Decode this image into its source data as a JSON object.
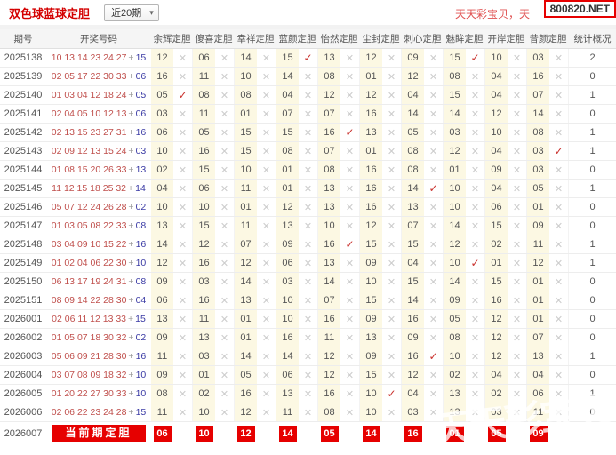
{
  "topbar": {
    "title": "双色球蓝球定胆",
    "range_selector": {
      "value": "近20期"
    },
    "promo_text": "天天彩宝贝，天",
    "site_badge": "800820.NET"
  },
  "icons": {
    "check": "✓",
    "cross": "✕",
    "dropdown_arrow": "▾"
  },
  "colors": {
    "accent_red": "#e60000",
    "title_red": "#d40000",
    "red_ball": "#c0504d",
    "blue_ball": "#3b3ba5",
    "hit_check": "#c9302c",
    "miss_cross": "#cccccc",
    "value_cell_bg": "#fcf8e3"
  },
  "watermark": "天天彩宝贝",
  "table": {
    "columns": [
      "期号",
      "开奖号码",
      "余辉定胆",
      "傻喜定胆",
      "幸祥定胆",
      "蓝颜定胆",
      "怡然定胆",
      "尘封定胆",
      "刺心定胆",
      "魅眸定胆",
      "开岸定胆",
      "昔颜定胆",
      "统计概况"
    ],
    "rows": [
      {
        "period": "2025138",
        "reds": "10 13 14 23 24 27",
        "blue": "15",
        "stat": "2",
        "picks": [
          {
            "v": "12",
            "h": 0
          },
          {
            "v": "06",
            "h": 0
          },
          {
            "v": "14",
            "h": 0
          },
          {
            "v": "15",
            "h": 1
          },
          {
            "v": "13",
            "h": 0
          },
          {
            "v": "12",
            "h": 0
          },
          {
            "v": "09",
            "h": 0
          },
          {
            "v": "15",
            "h": 1
          },
          {
            "v": "10",
            "h": 0
          },
          {
            "v": "03",
            "h": 0
          }
        ]
      },
      {
        "period": "2025139",
        "reds": "02 05 17 22 30 33",
        "blue": "06",
        "stat": "0",
        "picks": [
          {
            "v": "16",
            "h": 0
          },
          {
            "v": "11",
            "h": 0
          },
          {
            "v": "10",
            "h": 0
          },
          {
            "v": "14",
            "h": 0
          },
          {
            "v": "08",
            "h": 0
          },
          {
            "v": "01",
            "h": 0
          },
          {
            "v": "12",
            "h": 0
          },
          {
            "v": "08",
            "h": 0
          },
          {
            "v": "04",
            "h": 0
          },
          {
            "v": "16",
            "h": 0
          }
        ]
      },
      {
        "period": "2025140",
        "reds": "01 03 04 12 18 24",
        "blue": "05",
        "stat": "1",
        "picks": [
          {
            "v": "05",
            "h": 1
          },
          {
            "v": "08",
            "h": 0
          },
          {
            "v": "08",
            "h": 0
          },
          {
            "v": "04",
            "h": 0
          },
          {
            "v": "12",
            "h": 0
          },
          {
            "v": "12",
            "h": 0
          },
          {
            "v": "04",
            "h": 0
          },
          {
            "v": "15",
            "h": 0
          },
          {
            "v": "04",
            "h": 0
          },
          {
            "v": "07",
            "h": 0
          }
        ]
      },
      {
        "period": "2025141",
        "reds": "02 04 05 10 12 13",
        "blue": "06",
        "stat": "0",
        "picks": [
          {
            "v": "03",
            "h": 0
          },
          {
            "v": "11",
            "h": 0
          },
          {
            "v": "01",
            "h": 0
          },
          {
            "v": "07",
            "h": 0
          },
          {
            "v": "07",
            "h": 0
          },
          {
            "v": "16",
            "h": 0
          },
          {
            "v": "14",
            "h": 0
          },
          {
            "v": "14",
            "h": 0
          },
          {
            "v": "12",
            "h": 0
          },
          {
            "v": "14",
            "h": 0
          }
        ]
      },
      {
        "period": "2025142",
        "reds": "02 13 15 23 27 31",
        "blue": "16",
        "stat": "1",
        "picks": [
          {
            "v": "06",
            "h": 0
          },
          {
            "v": "05",
            "h": 0
          },
          {
            "v": "15",
            "h": 0
          },
          {
            "v": "15",
            "h": 0
          },
          {
            "v": "16",
            "h": 1
          },
          {
            "v": "13",
            "h": 0
          },
          {
            "v": "05",
            "h": 0
          },
          {
            "v": "03",
            "h": 0
          },
          {
            "v": "10",
            "h": 0
          },
          {
            "v": "08",
            "h": 0
          }
        ]
      },
      {
        "period": "2025143",
        "reds": "02 09 12 13 15 24",
        "blue": "03",
        "stat": "1",
        "picks": [
          {
            "v": "10",
            "h": 0
          },
          {
            "v": "16",
            "h": 0
          },
          {
            "v": "15",
            "h": 0
          },
          {
            "v": "08",
            "h": 0
          },
          {
            "v": "07",
            "h": 0
          },
          {
            "v": "01",
            "h": 0
          },
          {
            "v": "08",
            "h": 0
          },
          {
            "v": "12",
            "h": 0
          },
          {
            "v": "04",
            "h": 0
          },
          {
            "v": "03",
            "h": 1
          }
        ]
      },
      {
        "period": "2025144",
        "reds": "01 08 15 20 26 33",
        "blue": "13",
        "stat": "0",
        "picks": [
          {
            "v": "02",
            "h": 0
          },
          {
            "v": "15",
            "h": 0
          },
          {
            "v": "10",
            "h": 0
          },
          {
            "v": "01",
            "h": 0
          },
          {
            "v": "08",
            "h": 0
          },
          {
            "v": "16",
            "h": 0
          },
          {
            "v": "08",
            "h": 0
          },
          {
            "v": "01",
            "h": 0
          },
          {
            "v": "09",
            "h": 0
          },
          {
            "v": "03",
            "h": 0
          }
        ]
      },
      {
        "period": "2025145",
        "reds": "11 12 15 18 25 32",
        "blue": "14",
        "stat": "1",
        "picks": [
          {
            "v": "04",
            "h": 0
          },
          {
            "v": "06",
            "h": 0
          },
          {
            "v": "11",
            "h": 0
          },
          {
            "v": "01",
            "h": 0
          },
          {
            "v": "13",
            "h": 0
          },
          {
            "v": "16",
            "h": 0
          },
          {
            "v": "14",
            "h": 1
          },
          {
            "v": "10",
            "h": 0
          },
          {
            "v": "04",
            "h": 0
          },
          {
            "v": "05",
            "h": 0
          }
        ]
      },
      {
        "period": "2025146",
        "reds": "05 07 12 24 26 28",
        "blue": "02",
        "stat": "0",
        "picks": [
          {
            "v": "10",
            "h": 0
          },
          {
            "v": "10",
            "h": 0
          },
          {
            "v": "01",
            "h": 0
          },
          {
            "v": "12",
            "h": 0
          },
          {
            "v": "13",
            "h": 0
          },
          {
            "v": "16",
            "h": 0
          },
          {
            "v": "13",
            "h": 0
          },
          {
            "v": "10",
            "h": 0
          },
          {
            "v": "06",
            "h": 0
          },
          {
            "v": "01",
            "h": 0
          }
        ]
      },
      {
        "period": "2025147",
        "reds": "01 03 05 08 22 33",
        "blue": "08",
        "stat": "0",
        "picks": [
          {
            "v": "13",
            "h": 0
          },
          {
            "v": "15",
            "h": 0
          },
          {
            "v": "11",
            "h": 0
          },
          {
            "v": "13",
            "h": 0
          },
          {
            "v": "10",
            "h": 0
          },
          {
            "v": "12",
            "h": 0
          },
          {
            "v": "07",
            "h": 0
          },
          {
            "v": "14",
            "h": 0
          },
          {
            "v": "15",
            "h": 0
          },
          {
            "v": "09",
            "h": 0
          }
        ]
      },
      {
        "period": "2025148",
        "reds": "03 04 09 10 15 22",
        "blue": "16",
        "stat": "1",
        "picks": [
          {
            "v": "14",
            "h": 0
          },
          {
            "v": "12",
            "h": 0
          },
          {
            "v": "07",
            "h": 0
          },
          {
            "v": "09",
            "h": 0
          },
          {
            "v": "16",
            "h": 1
          },
          {
            "v": "15",
            "h": 0
          },
          {
            "v": "15",
            "h": 0
          },
          {
            "v": "12",
            "h": 0
          },
          {
            "v": "02",
            "h": 0
          },
          {
            "v": "11",
            "h": 0
          }
        ]
      },
      {
        "period": "2025149",
        "reds": "01 02 04 06 22 30",
        "blue": "10",
        "stat": "1",
        "picks": [
          {
            "v": "12",
            "h": 0
          },
          {
            "v": "16",
            "h": 0
          },
          {
            "v": "12",
            "h": 0
          },
          {
            "v": "06",
            "h": 0
          },
          {
            "v": "13",
            "h": 0
          },
          {
            "v": "09",
            "h": 0
          },
          {
            "v": "04",
            "h": 0
          },
          {
            "v": "10",
            "h": 1
          },
          {
            "v": "01",
            "h": 0
          },
          {
            "v": "12",
            "h": 0
          }
        ]
      },
      {
        "period": "2025150",
        "reds": "06 13 17 19 24 31",
        "blue": "08",
        "stat": "0",
        "picks": [
          {
            "v": "09",
            "h": 0
          },
          {
            "v": "03",
            "h": 0
          },
          {
            "v": "14",
            "h": 0
          },
          {
            "v": "03",
            "h": 0
          },
          {
            "v": "14",
            "h": 0
          },
          {
            "v": "10",
            "h": 0
          },
          {
            "v": "15",
            "h": 0
          },
          {
            "v": "14",
            "h": 0
          },
          {
            "v": "15",
            "h": 0
          },
          {
            "v": "01",
            "h": 0
          }
        ]
      },
      {
        "period": "2025151",
        "reds": "08 09 14 22 28 30",
        "blue": "04",
        "stat": "0",
        "picks": [
          {
            "v": "06",
            "h": 0
          },
          {
            "v": "16",
            "h": 0
          },
          {
            "v": "13",
            "h": 0
          },
          {
            "v": "10",
            "h": 0
          },
          {
            "v": "07",
            "h": 0
          },
          {
            "v": "15",
            "h": 0
          },
          {
            "v": "14",
            "h": 0
          },
          {
            "v": "09",
            "h": 0
          },
          {
            "v": "16",
            "h": 0
          },
          {
            "v": "01",
            "h": 0
          }
        ]
      },
      {
        "period": "2026001",
        "reds": "02 06 11 12 13 33",
        "blue": "15",
        "stat": "0",
        "picks": [
          {
            "v": "13",
            "h": 0
          },
          {
            "v": "11",
            "h": 0
          },
          {
            "v": "01",
            "h": 0
          },
          {
            "v": "10",
            "h": 0
          },
          {
            "v": "16",
            "h": 0
          },
          {
            "v": "09",
            "h": 0
          },
          {
            "v": "16",
            "h": 0
          },
          {
            "v": "05",
            "h": 0
          },
          {
            "v": "12",
            "h": 0
          },
          {
            "v": "01",
            "h": 0
          }
        ]
      },
      {
        "period": "2026002",
        "reds": "01 05 07 18 30 32",
        "blue": "02",
        "stat": "0",
        "picks": [
          {
            "v": "09",
            "h": 0
          },
          {
            "v": "13",
            "h": 0
          },
          {
            "v": "01",
            "h": 0
          },
          {
            "v": "16",
            "h": 0
          },
          {
            "v": "11",
            "h": 0
          },
          {
            "v": "13",
            "h": 0
          },
          {
            "v": "09",
            "h": 0
          },
          {
            "v": "08",
            "h": 0
          },
          {
            "v": "12",
            "h": 0
          },
          {
            "v": "07",
            "h": 0
          }
        ]
      },
      {
        "period": "2026003",
        "reds": "05 06 09 21 28 30",
        "blue": "16",
        "stat": "1",
        "picks": [
          {
            "v": "11",
            "h": 0
          },
          {
            "v": "03",
            "h": 0
          },
          {
            "v": "14",
            "h": 0
          },
          {
            "v": "14",
            "h": 0
          },
          {
            "v": "12",
            "h": 0
          },
          {
            "v": "09",
            "h": 0
          },
          {
            "v": "16",
            "h": 1
          },
          {
            "v": "10",
            "h": 0
          },
          {
            "v": "12",
            "h": 0
          },
          {
            "v": "13",
            "h": 0
          }
        ]
      },
      {
        "period": "2026004",
        "reds": "03 07 08 09 18 32",
        "blue": "10",
        "stat": "0",
        "picks": [
          {
            "v": "09",
            "h": 0
          },
          {
            "v": "01",
            "h": 0
          },
          {
            "v": "05",
            "h": 0
          },
          {
            "v": "06",
            "h": 0
          },
          {
            "v": "12",
            "h": 0
          },
          {
            "v": "15",
            "h": 0
          },
          {
            "v": "12",
            "h": 0
          },
          {
            "v": "02",
            "h": 0
          },
          {
            "v": "04",
            "h": 0
          },
          {
            "v": "04",
            "h": 0
          }
        ]
      },
      {
        "period": "2026005",
        "reds": "01 20 22 27 30 33",
        "blue": "10",
        "stat": "1",
        "picks": [
          {
            "v": "08",
            "h": 0
          },
          {
            "v": "02",
            "h": 0
          },
          {
            "v": "16",
            "h": 0
          },
          {
            "v": "13",
            "h": 0
          },
          {
            "v": "16",
            "h": 0
          },
          {
            "v": "10",
            "h": 1
          },
          {
            "v": "04",
            "h": 0
          },
          {
            "v": "13",
            "h": 0
          },
          {
            "v": "02",
            "h": 0
          },
          {
            "v": "06",
            "h": 0
          }
        ]
      },
      {
        "period": "2026006",
        "reds": "02 06 22 23 24 28",
        "blue": "15",
        "stat": "0",
        "picks": [
          {
            "v": "11",
            "h": 0
          },
          {
            "v": "10",
            "h": 0
          },
          {
            "v": "12",
            "h": 0
          },
          {
            "v": "11",
            "h": 0
          },
          {
            "v": "08",
            "h": 0
          },
          {
            "v": "10",
            "h": 0
          },
          {
            "v": "03",
            "h": 0
          },
          {
            "v": "13",
            "h": 0
          },
          {
            "v": "03",
            "h": 0
          },
          {
            "v": "11",
            "h": 0
          }
        ]
      }
    ],
    "current": {
      "period": "2026007",
      "banner": "当前期定胆",
      "picks": [
        "06",
        "10",
        "12",
        "14",
        "05",
        "14",
        "16",
        "01",
        "05",
        "09"
      ],
      "stat": ""
    }
  }
}
